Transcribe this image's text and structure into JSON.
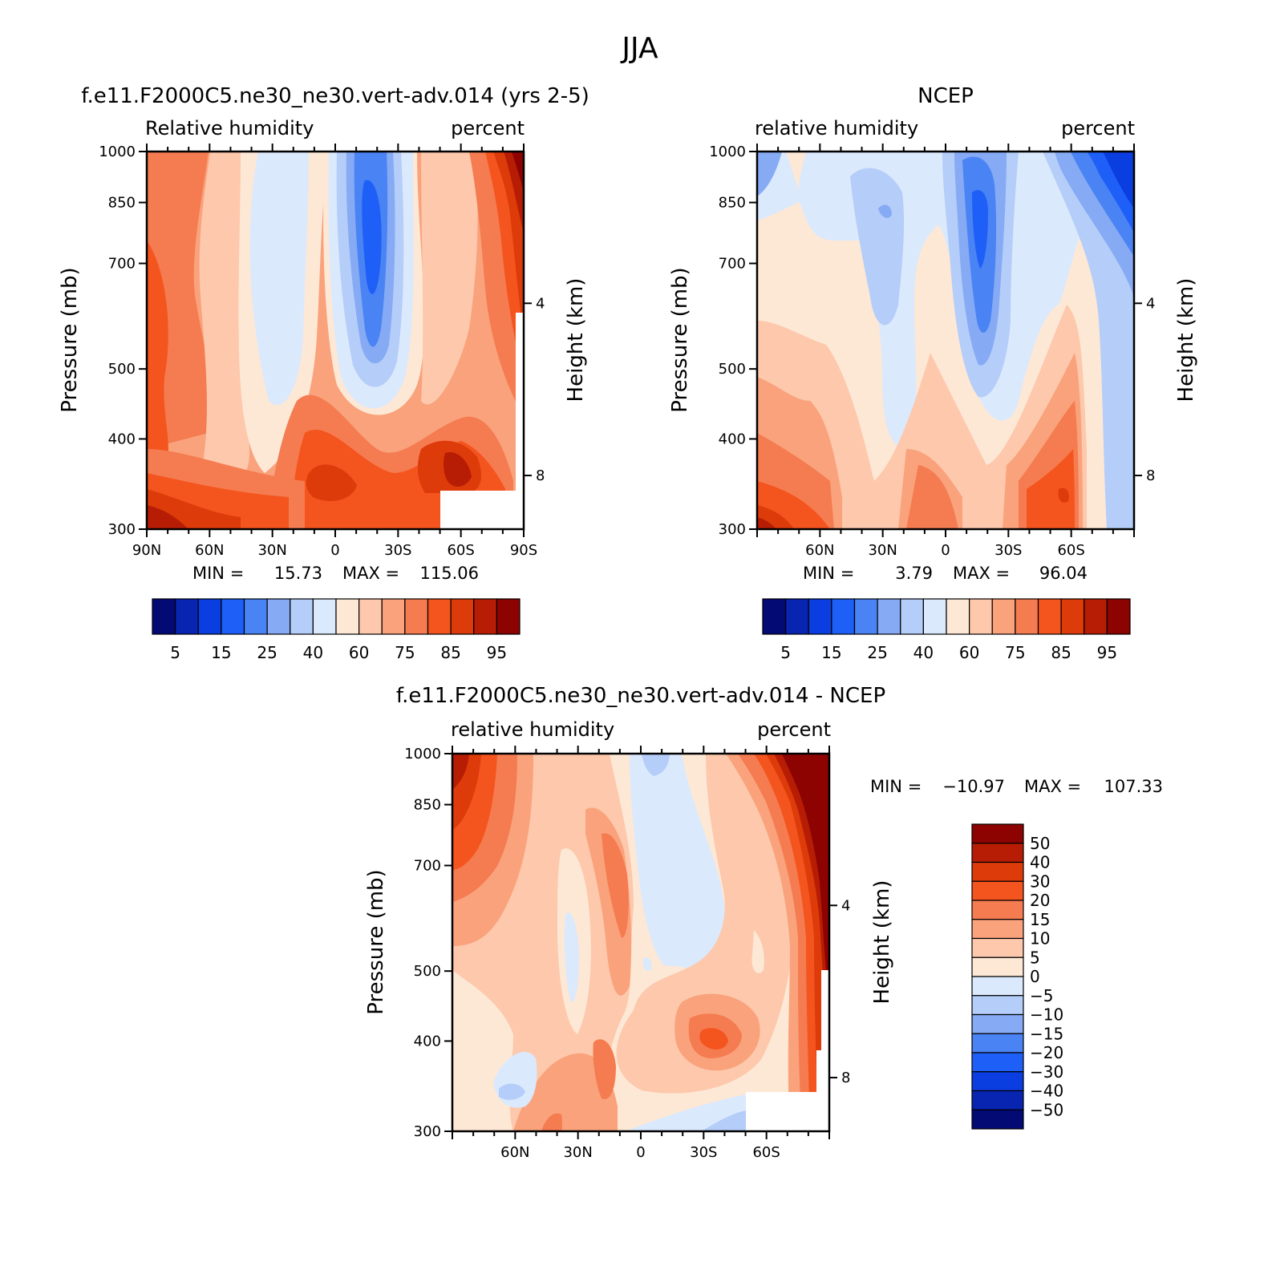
{
  "page_title": "JJA",
  "chart_data": [
    {
      "type": "contour",
      "title": "f.e11.F2000C5.ne30_ne30.vert-adv.014 (yrs 2-5)",
      "left_string": "Relative humidity",
      "right_string": "percent",
      "ylabel": "Pressure (mb)",
      "y2label": "Height (km)",
      "xlabel": "",
      "ylim": [
        1000,
        300
      ],
      "y_ticks": [
        "300",
        "400",
        "500",
        "700",
        "850",
        "1000"
      ],
      "y2_ticks": [
        "8",
        "4"
      ],
      "x_ticks": [
        "90N",
        "60N",
        "30N",
        "0",
        "30S",
        "60S",
        "90S"
      ],
      "min_label": "MIN =",
      "min_value": "15.73",
      "max_label": "MAX =",
      "max_value": "115.06",
      "colorbar_labels": [
        "5",
        "15",
        "25",
        "40",
        "60",
        "75",
        "85",
        "95"
      ],
      "colorbar_colors": [
        "#040a74",
        "#0725b0",
        "#0a3ee0",
        "#1e5ff7",
        "#4a83f3",
        "#86aaf4",
        "#b4cdf9",
        "#dbe9fd",
        "#fde8d6",
        "#fdc8ab",
        "#f9a27c",
        "#f57b50",
        "#f4541e",
        "#de3b0b",
        "#b71d04",
        "#8c0302"
      ]
    },
    {
      "type": "contour",
      "title": "NCEP",
      "left_string": "relative humidity",
      "right_string": "percent",
      "ylabel": "Pressure (mb)",
      "y2label": "Height (km)",
      "ylim": [
        1000,
        300
      ],
      "y_ticks": [
        "300",
        "400",
        "500",
        "700",
        "850",
        "1000"
      ],
      "y2_ticks": [
        "8",
        "4"
      ],
      "x_ticks": [
        "60N",
        "30N",
        "0",
        "30S",
        "60S"
      ],
      "min_label": "MIN =",
      "min_value": "3.79",
      "max_label": "MAX =",
      "max_value": "96.04",
      "colorbar_labels": [
        "5",
        "15",
        "25",
        "40",
        "60",
        "75",
        "85",
        "95"
      ],
      "colorbar_colors": [
        "#040a74",
        "#0725b0",
        "#0a3ee0",
        "#1e5ff7",
        "#4a83f3",
        "#86aaf4",
        "#b4cdf9",
        "#dbe9fd",
        "#fde8d6",
        "#fdc8ab",
        "#f9a27c",
        "#f57b50",
        "#f4541e",
        "#de3b0b",
        "#b71d04",
        "#8c0302"
      ]
    },
    {
      "type": "contour",
      "title": "f.e11.F2000C5.ne30_ne30.vert-adv.014 - NCEP",
      "left_string": "relative humidity",
      "right_string": "percent",
      "ylabel": "Pressure (mb)",
      "y2label": "Height (km)",
      "ylim": [
        1000,
        300
      ],
      "y_ticks": [
        "300",
        "400",
        "500",
        "700",
        "850",
        "1000"
      ],
      "y2_ticks": [
        "8",
        "4"
      ],
      "x_ticks": [
        "60N",
        "30N",
        "0",
        "30S",
        "60S"
      ],
      "min_label": "MIN =",
      "min_value": "-10.97",
      "max_label": "MAX =",
      "max_value": "107.33",
      "colorbar_labels": [
        "50",
        "40",
        "30",
        "20",
        "15",
        "10",
        "5",
        "0",
        "-5",
        "-10",
        "-15",
        "-20",
        "-30",
        "-40",
        "-50"
      ],
      "colorbar_colors": [
        "#8c0302",
        "#b71d04",
        "#de3b0b",
        "#f4541e",
        "#f57b50",
        "#f9a27c",
        "#fdc8ab",
        "#fde8d6",
        "#dbe9fd",
        "#b4cdf9",
        "#86aaf4",
        "#4a83f3",
        "#1e5ff7",
        "#0a3ee0",
        "#0725b0",
        "#040a74"
      ]
    }
  ]
}
